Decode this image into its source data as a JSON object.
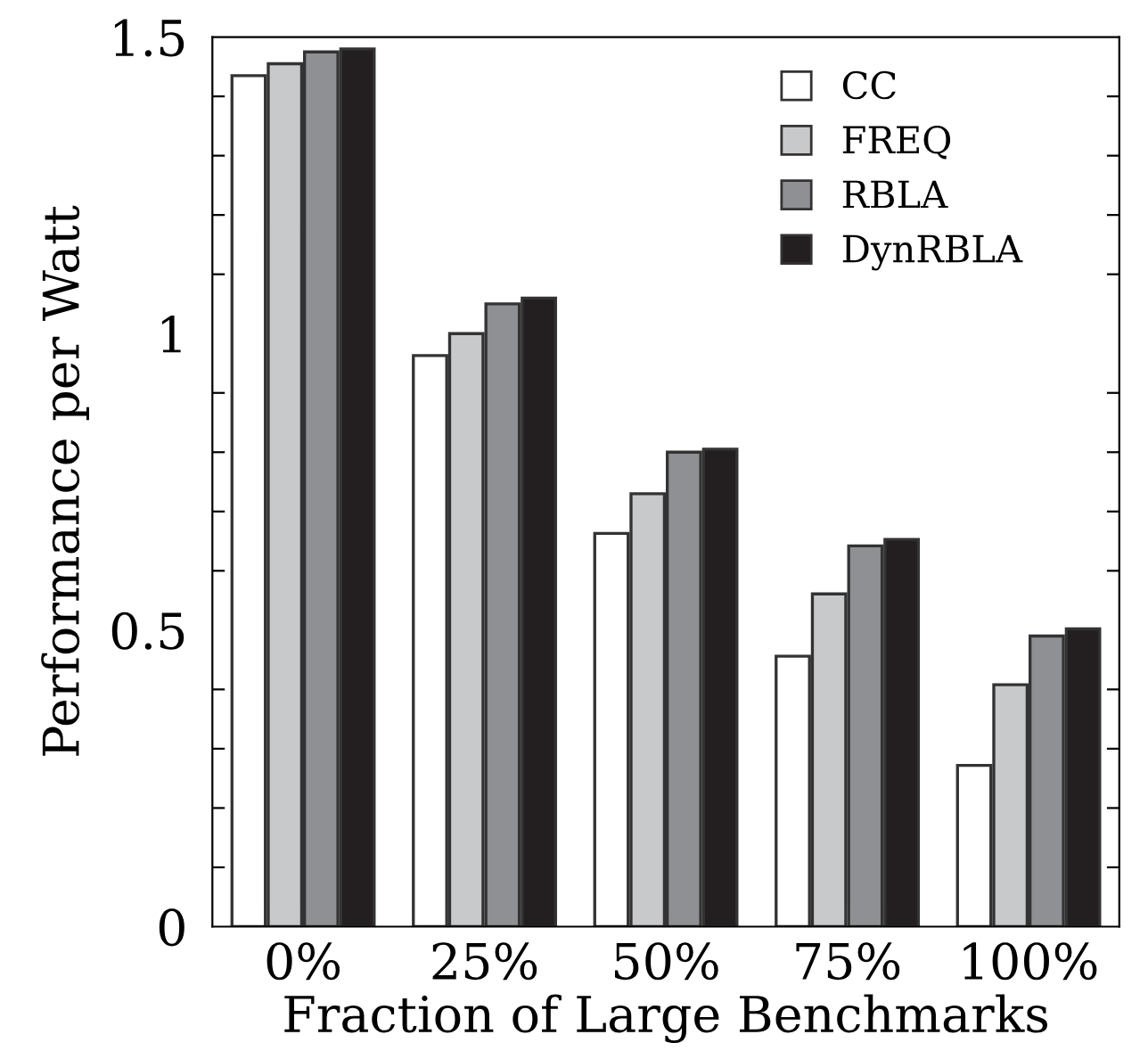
{
  "chart_data": {
    "type": "bar",
    "xlabel": "Fraction of Large Benchmarks",
    "ylabel": "Performance per Watt",
    "categories": [
      "0%",
      "25%",
      "50%",
      "75%",
      "100%"
    ],
    "series": [
      {
        "name": "CC",
        "color": "#ffffff",
        "values": [
          1.435,
          0.963,
          0.663,
          0.456,
          0.272
        ]
      },
      {
        "name": "FREQ",
        "color": "#c8c9cb",
        "values": [
          1.455,
          1.0,
          0.73,
          0.561,
          0.408
        ]
      },
      {
        "name": "RBLA",
        "color": "#8f9094",
        "values": [
          1.475,
          1.05,
          0.8,
          0.642,
          0.49
        ]
      },
      {
        "name": "DynRBLA",
        "color": "#231f20",
        "values": [
          1.48,
          1.06,
          0.805,
          0.653,
          0.502
        ]
      }
    ],
    "ylim": [
      0,
      1.5
    ],
    "yticks": [
      0,
      {
        "value": 0.1,
        "label": null
      },
      {
        "value": 0.2,
        "label": null
      },
      {
        "value": 0.3,
        "label": null
      },
      {
        "value": 0.4,
        "label": null
      },
      0.5,
      {
        "value": 0.6,
        "label": null
      },
      {
        "value": 0.7,
        "label": null
      },
      {
        "value": 0.8,
        "label": null
      },
      {
        "value": 0.9,
        "label": null
      },
      1,
      {
        "value": 1.1,
        "label": null
      },
      {
        "value": 1.2,
        "label": null
      },
      {
        "value": 1.3,
        "label": null
      },
      {
        "value": 1.4,
        "label": null
      },
      1.5
    ],
    "grid": false,
    "legend": "top right"
  }
}
